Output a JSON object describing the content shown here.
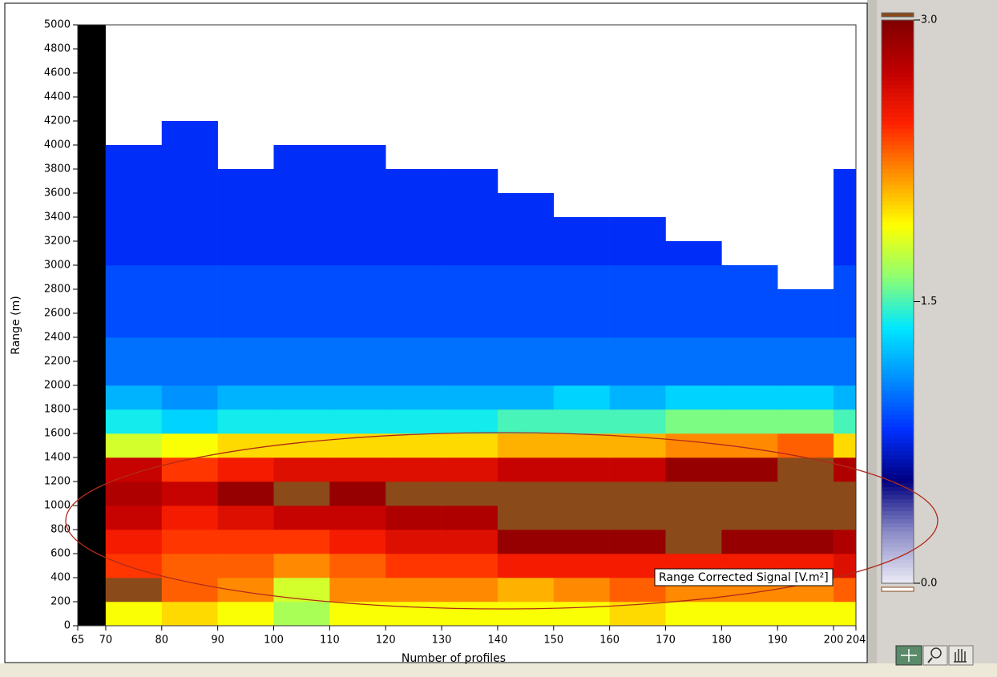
{
  "chart_data": {
    "type": "heatmap",
    "xlabel": "Number of profiles",
    "ylabel": "Range (m)",
    "annotation": "Range Corrected Signal [V.m²]",
    "xlim": [
      65,
      204
    ],
    "xticks": [
      65,
      70,
      80,
      90,
      100,
      110,
      120,
      130,
      140,
      150,
      160,
      170,
      180,
      190,
      200,
      204
    ],
    "ylim": [
      0,
      5000
    ],
    "yticks": [
      0,
      200,
      400,
      600,
      800,
      1000,
      1200,
      1400,
      1600,
      1800,
      2000,
      2200,
      2400,
      2600,
      2800,
      3000,
      3200,
      3400,
      3600,
      3800,
      4000,
      4200,
      4400,
      4600,
      4800,
      5000
    ],
    "x_edges": [
      70,
      80,
      90,
      100,
      110,
      120,
      130,
      140,
      150,
      160,
      170,
      180,
      190,
      200,
      204
    ],
    "y_edges": [
      0,
      200,
      400,
      600,
      800,
      1000,
      1200,
      1400,
      1600,
      1800,
      2000,
      2200,
      2400,
      2600,
      2800,
      3000,
      3200,
      3400,
      3600,
      3800,
      4000,
      4200,
      4400,
      4600,
      4800,
      5000
    ],
    "z": [
      [
        -1.9,
        -2.0,
        -1.9,
        -1.7,
        -1.9,
        -1.9,
        -1.9,
        -1.9,
        -1.9,
        -2.0,
        -1.9,
        -1.9,
        -1.9,
        -1.9
      ],
      [
        -3.2,
        -2.3,
        -2.2,
        -1.8,
        -2.2,
        -2.2,
        -2.2,
        -2.1,
        -2.2,
        -2.3,
        -2.2,
        -2.2,
        -2.2,
        -2.3
      ],
      [
        -2.4,
        -2.3,
        -2.3,
        -2.2,
        -2.3,
        -2.4,
        -2.4,
        -2.5,
        -2.5,
        -2.5,
        -2.5,
        -2.5,
        -2.5,
        -2.6
      ],
      [
        -2.5,
        -2.4,
        -2.4,
        -2.4,
        -2.5,
        -2.6,
        -2.6,
        -2.9,
        -2.9,
        -2.9,
        -3.2,
        -2.9,
        -2.9,
        -2.8
      ],
      [
        -2.7,
        -2.5,
        -2.6,
        -2.7,
        -2.7,
        -2.8,
        -2.8,
        -3.2,
        -3.2,
        -3.2,
        -3.2,
        -3.2,
        -3.2,
        -3.2
      ],
      [
        -2.8,
        -2.7,
        -2.9,
        -3.2,
        -2.9,
        -3.2,
        -3.2,
        -3.2,
        -3.2,
        -3.2,
        -3.2,
        -3.2,
        -3.2,
        -3.2
      ],
      [
        -2.7,
        -2.4,
        -2.5,
        -2.6,
        -2.6,
        -2.6,
        -2.6,
        -2.7,
        -2.7,
        -2.7,
        -2.9,
        -2.9,
        -3.2,
        -2.8
      ],
      [
        -1.8,
        -1.9,
        -2.0,
        -2.0,
        -2.0,
        -2.0,
        -2.0,
        -2.1,
        -2.1,
        -2.1,
        -2.2,
        -2.2,
        -2.3,
        -2.0
      ],
      [
        -1.4,
        -1.3,
        -1.4,
        -1.4,
        -1.4,
        -1.4,
        -1.4,
        -1.5,
        -1.5,
        -1.5,
        -1.6,
        -1.6,
        -1.6,
        -1.5
      ],
      [
        -1.2,
        -1.1,
        -1.2,
        -1.2,
        -1.2,
        -1.2,
        -1.2,
        -1.2,
        -1.3,
        -1.2,
        -1.3,
        -1.3,
        -1.3,
        -1.2
      ],
      [
        -1.0,
        -1.0,
        -1.0,
        -1.0,
        -1.0,
        -1.0,
        -1.0,
        -1.0,
        -1.0,
        -1.0,
        -1.0,
        -1.0,
        -1.0,
        -1.0
      ],
      [
        -1.0,
        -1.0,
        -1.0,
        -1.0,
        -1.0,
        -1.0,
        -1.0,
        -1.0,
        -1.0,
        -1.0,
        -1.0,
        -1.0,
        -1.0,
        -1.0
      ],
      [
        -0.9,
        -0.9,
        -0.9,
        -0.9,
        -0.9,
        -0.9,
        -0.9,
        -0.9,
        -0.9,
        -0.9,
        -0.9,
        -0.9,
        -0.9,
        -0.9
      ],
      [
        -0.9,
        -0.9,
        -0.9,
        -0.9,
        -0.9,
        -0.9,
        -0.9,
        -0.9,
        -0.9,
        -0.9,
        -0.9,
        -0.9,
        -0.9,
        -0.9
      ],
      [
        -0.9,
        -0.9,
        -0.9,
        -0.9,
        -0.9,
        -0.9,
        -0.9,
        -0.9,
        -0.9,
        -0.9,
        -0.9,
        -0.9,
        null,
        -0.9
      ],
      [
        -0.8,
        -0.8,
        -0.8,
        -0.8,
        -0.8,
        -0.8,
        -0.8,
        -0.8,
        -0.8,
        -0.8,
        -0.8,
        null,
        null,
        -0.8
      ],
      [
        -0.8,
        -0.8,
        -0.8,
        -0.8,
        -0.8,
        -0.8,
        -0.8,
        -0.8,
        -0.8,
        -0.8,
        null,
        null,
        null,
        -0.8
      ],
      [
        -0.8,
        -0.8,
        -0.8,
        -0.8,
        -0.8,
        -0.8,
        -0.8,
        -0.8,
        null,
        null,
        null,
        null,
        null,
        -0.8
      ],
      [
        -0.8,
        -0.8,
        -0.8,
        -0.8,
        -0.8,
        -0.8,
        -0.8,
        null,
        null,
        null,
        null,
        null,
        null,
        -0.8
      ],
      [
        -0.8,
        -0.8,
        null,
        -0.8,
        -0.8,
        null,
        null,
        null,
        null,
        null,
        null,
        null,
        null,
        null
      ],
      [
        null,
        -0.8,
        null,
        null,
        null,
        null,
        null,
        null,
        null,
        null,
        null,
        null,
        null,
        null
      ],
      [
        null,
        null,
        null,
        null,
        null,
        null,
        null,
        null,
        null,
        null,
        null,
        null,
        null,
        null
      ],
      [
        null,
        null,
        null,
        null,
        null,
        null,
        null,
        null,
        null,
        null,
        null,
        null,
        null,
        null
      ],
      [
        null,
        null,
        null,
        null,
        null,
        null,
        null,
        null,
        null,
        null,
        null,
        null,
        null,
        null
      ],
      [
        null,
        null,
        null,
        null,
        null,
        null,
        null,
        null,
        null,
        null,
        null,
        null,
        null,
        null
      ]
    ],
    "colorbar": {
      "lim": [
        0,
        -3
      ],
      "ticks": [
        {
          "value": -3,
          "label": "-3.0"
        },
        {
          "value": -1.5,
          "label": "-1.5"
        },
        {
          "value": 0,
          "label": "-0.0"
        }
      ]
    },
    "colormap": [
      "#ececf6",
      "#8c8cc8",
      "#000080",
      "#0030ff",
      "#0090ff",
      "#00e8ff",
      "#90ff70",
      "#ffff00",
      "#ff9000",
      "#ff2000",
      "#c00000",
      "#800000"
    ],
    "above_color": "#8b4a1a",
    "below_color": "#ffffff",
    "nodata_color": "#000000"
  }
}
